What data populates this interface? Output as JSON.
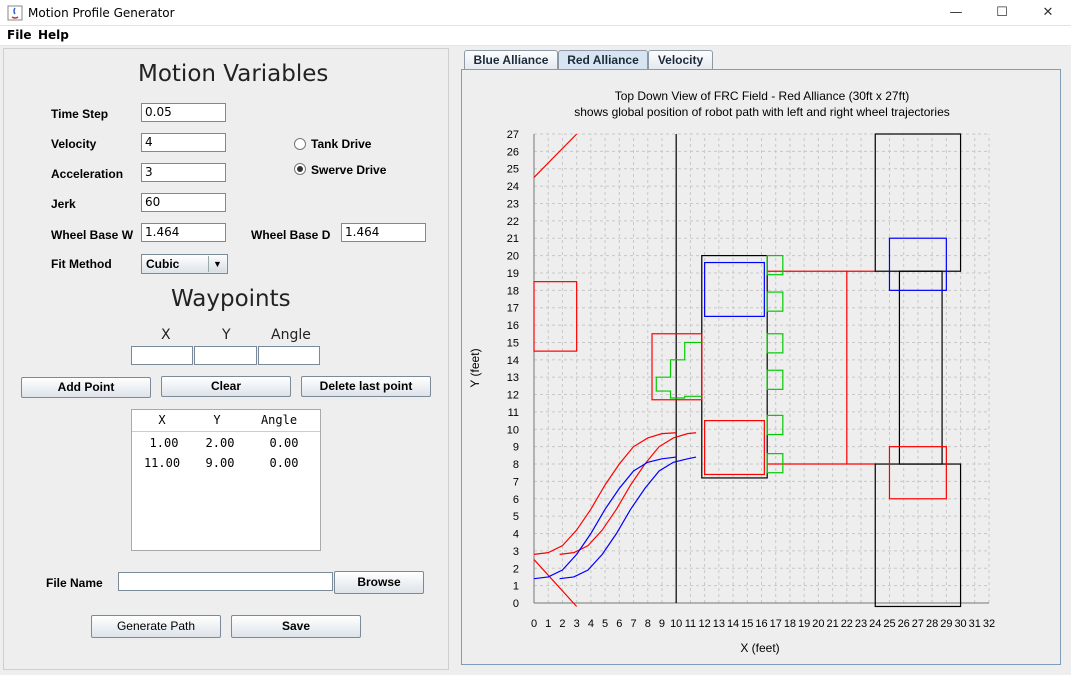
{
  "window": {
    "title": "Motion Profile Generator",
    "controls": [
      "—",
      "☐",
      "✕"
    ]
  },
  "menu": [
    "File",
    "Help"
  ],
  "motion": {
    "heading": "Motion Variables",
    "time_step_label": "Time Step",
    "time_step": "0.05",
    "velocity_label": "Velocity",
    "velocity": "4",
    "acceleration_label": "Acceleration",
    "acceleration": "3",
    "jerk_label": "Jerk",
    "jerk": "60",
    "wheel_base_w_label": "Wheel Base W",
    "wheel_base_w": "1.464",
    "wheel_base_d_label": "Wheel Base D",
    "wheel_base_d": "1.464",
    "fit_method_label": "Fit Method",
    "fit_method": "Cubic",
    "drive_options": [
      {
        "label": "Tank Drive",
        "selected": false
      },
      {
        "label": "Swerve Drive",
        "selected": true
      }
    ]
  },
  "waypoints": {
    "heading": "Waypoints",
    "input_headers": [
      "X",
      "Y",
      "Angle"
    ],
    "add_button": "Add Point",
    "clear_button": "Clear",
    "delete_button": "Delete last point",
    "table_headers": [
      "X",
      "Y",
      "Angle"
    ],
    "rows": [
      [
        "1.00",
        "2.00",
        "0.00"
      ],
      [
        "11.00",
        "9.00",
        "0.00"
      ]
    ]
  },
  "file": {
    "label": "File Name",
    "value": "",
    "browse_button": "Browse",
    "generate_button": "Generate Path",
    "save_button": "Save"
  },
  "tabs": [
    {
      "label": "Blue Alliance",
      "active": false
    },
    {
      "label": "Red Alliance",
      "active": true
    },
    {
      "label": "Velocity",
      "active": false
    }
  ],
  "chart_data": {
    "type": "line",
    "title": "Top Down View of FRC Field - Red Alliance (30ft x 27ft)",
    "subtitle": "shows global position of robot path with left and right wheel trajectories",
    "xlabel": "X (feet)",
    "ylabel": "Y (feet)",
    "xlim": [
      0,
      32
    ],
    "ylim": [
      0,
      27
    ],
    "grid": true,
    "colors": {
      "red": "#ff0000",
      "blue": "#0000ff",
      "green": "#00cc00",
      "black": "#000000"
    },
    "paths": [
      {
        "color": "red",
        "points": [
          [
            0,
            2.8
          ],
          [
            1,
            2.9
          ],
          [
            2,
            3.3
          ],
          [
            3,
            4.2
          ],
          [
            4,
            5.4
          ],
          [
            5,
            6.8
          ],
          [
            6,
            8.0
          ],
          [
            7,
            9.0
          ],
          [
            8,
            9.5
          ],
          [
            9,
            9.75
          ],
          [
            10,
            9.8
          ]
        ]
      },
      {
        "color": "red",
        "points": [
          [
            1.8,
            2.8
          ],
          [
            2.8,
            2.9
          ],
          [
            3.8,
            3.3
          ],
          [
            4.8,
            4.2
          ],
          [
            5.8,
            5.4
          ],
          [
            6.8,
            6.8
          ],
          [
            7.8,
            8.0
          ],
          [
            8.8,
            9.0
          ],
          [
            9.8,
            9.5
          ],
          [
            10.8,
            9.75
          ],
          [
            11.4,
            9.8
          ]
        ]
      },
      {
        "color": "blue",
        "points": [
          [
            0,
            1.4
          ],
          [
            1,
            1.5
          ],
          [
            2,
            1.9
          ],
          [
            3,
            2.8
          ],
          [
            4,
            4.0
          ],
          [
            5,
            5.4
          ],
          [
            6,
            6.6
          ],
          [
            7,
            7.6
          ],
          [
            8,
            8.1
          ],
          [
            9,
            8.3
          ],
          [
            10,
            8.4
          ]
        ]
      },
      {
        "color": "blue",
        "points": [
          [
            1.8,
            1.4
          ],
          [
            2.8,
            1.5
          ],
          [
            3.8,
            1.9
          ],
          [
            4.8,
            2.8
          ],
          [
            5.8,
            4.0
          ],
          [
            6.8,
            5.4
          ],
          [
            7.8,
            6.6
          ],
          [
            8.8,
            7.6
          ],
          [
            9.8,
            8.1
          ],
          [
            10.8,
            8.3
          ],
          [
            11.4,
            8.4
          ]
        ]
      }
    ],
    "field_lines": [
      {
        "color": "black",
        "points": [
          [
            10,
            0
          ],
          [
            10,
            27
          ]
        ]
      },
      {
        "color": "red",
        "points": [
          [
            0,
            24.5
          ],
          [
            3,
            27
          ]
        ]
      },
      {
        "color": "red",
        "points": [
          [
            0,
            2.5
          ],
          [
            3,
            -0.2
          ]
        ]
      }
    ],
    "shapes": [
      {
        "color": "red",
        "rect": [
          0,
          14.5,
          3,
          18.5
        ]
      },
      {
        "color": "black",
        "rect": [
          11.8,
          7.2,
          16.4,
          20
        ]
      },
      {
        "color": "blue",
        "rect": [
          12,
          16.5,
          16.2,
          19.6
        ]
      },
      {
        "color": "red",
        "rect": [
          12,
          7.4,
          16.2,
          10.5
        ]
      },
      {
        "color": "red",
        "rect": [
          8.3,
          11.7,
          11.8,
          15.5
        ]
      },
      {
        "color": "black",
        "rect": [
          24,
          19.1,
          30,
          27
        ]
      },
      {
        "color": "black",
        "rect": [
          24,
          -0.2,
          30,
          8
        ]
      },
      {
        "color": "black",
        "rect": [
          25.7,
          8,
          28.7,
          19.1
        ]
      },
      {
        "color": "blue",
        "rect": [
          25,
          18,
          29,
          21
        ]
      },
      {
        "color": "red",
        "rect": [
          25,
          6,
          29,
          9
        ]
      },
      {
        "color": "green",
        "rect": [
          16.4,
          18.9,
          17.5,
          20
        ]
      },
      {
        "color": "green",
        "rect": [
          16.4,
          16.8,
          17.5,
          17.9
        ]
      },
      {
        "color": "green",
        "rect": [
          16.4,
          14.4,
          17.5,
          15.5
        ]
      },
      {
        "color": "green",
        "rect": [
          16.4,
          12.3,
          17.5,
          13.4
        ]
      },
      {
        "color": "green",
        "rect": [
          16.4,
          9.7,
          17.5,
          10.8
        ]
      },
      {
        "color": "green",
        "rect": [
          16.4,
          7.5,
          17.5,
          8.6
        ]
      }
    ],
    "connectors": [
      {
        "color": "red",
        "points": [
          [
            16.4,
            19.1
          ],
          [
            24,
            19.1
          ]
        ]
      },
      {
        "color": "red",
        "points": [
          [
            16.4,
            8
          ],
          [
            24,
            8
          ]
        ]
      },
      {
        "color": "red",
        "points": [
          [
            22,
            8
          ],
          [
            22,
            19.1
          ]
        ]
      }
    ],
    "steps": [
      {
        "color": "green",
        "points": [
          [
            11.8,
            15
          ],
          [
            10.6,
            15
          ],
          [
            10.6,
            14
          ],
          [
            9.6,
            14
          ],
          [
            9.6,
            13
          ],
          [
            8.6,
            13
          ],
          [
            8.6,
            12.2
          ],
          [
            9.6,
            12.2
          ],
          [
            9.6,
            11.8
          ],
          [
            10.6,
            11.8
          ],
          [
            10.6,
            11.9
          ],
          [
            11.8,
            11.9
          ]
        ]
      }
    ]
  }
}
